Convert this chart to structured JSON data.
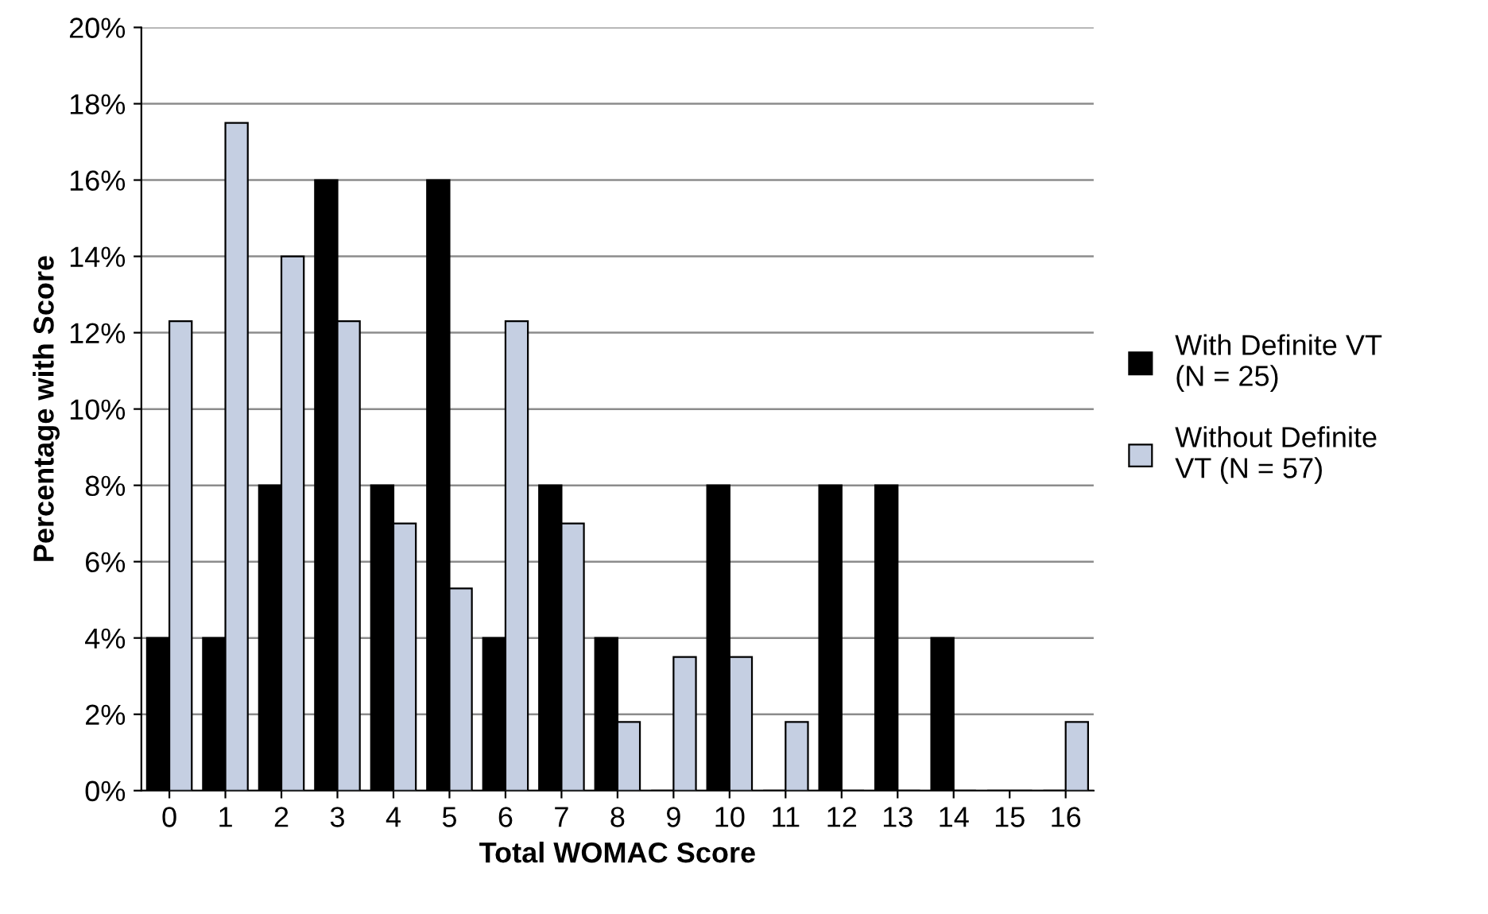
{
  "chart_data": {
    "type": "bar",
    "xlabel": "Total WOMAC Score",
    "ylabel": "Percentage with Score",
    "categories": [
      "0",
      "1",
      "2",
      "3",
      "4",
      "5",
      "6",
      "7",
      "8",
      "9",
      "10",
      "11",
      "12",
      "13",
      "14",
      "15",
      "16"
    ],
    "series": [
      {
        "name": "With Definite VT\n(N = 25)",
        "color": "#000000",
        "values": [
          4,
          4,
          8,
          16,
          8,
          16,
          4,
          8,
          4,
          0,
          8,
          0,
          8,
          8,
          4,
          0,
          0
        ]
      },
      {
        "name": "Without Definite\nVT (N = 57)",
        "color": "#c5cfe2",
        "values": [
          12.3,
          17.5,
          14.0,
          12.3,
          7.0,
          5.3,
          12.3,
          7.0,
          1.8,
          3.5,
          3.5,
          1.8,
          0,
          0,
          0,
          0,
          1.8
        ]
      }
    ],
    "ylim": [
      0,
      20
    ],
    "yticks": [
      {
        "value": 0,
        "label": "0%"
      },
      {
        "value": 2,
        "label": "2%"
      },
      {
        "value": 4,
        "label": "4%"
      },
      {
        "value": 6,
        "label": "6%"
      },
      {
        "value": 8,
        "label": "8%"
      },
      {
        "value": 10,
        "label": "10%"
      },
      {
        "value": 12,
        "label": "12%"
      },
      {
        "value": 14,
        "label": "14%"
      },
      {
        "value": 16,
        "label": "16%"
      },
      {
        "value": 18,
        "label": "18%"
      },
      {
        "value": 20,
        "label": "20%"
      }
    ],
    "grid": "y",
    "legend": "right"
  }
}
